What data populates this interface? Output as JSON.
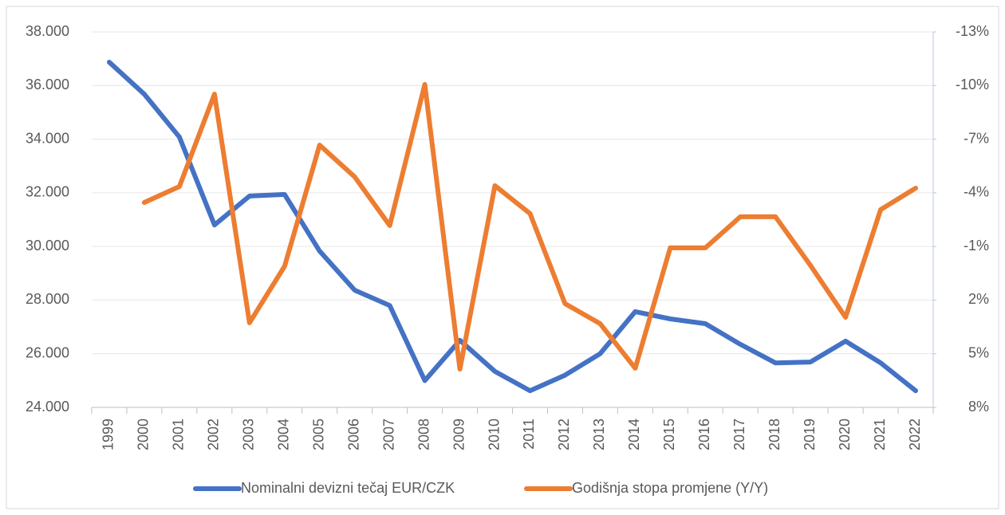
{
  "chart_data": {
    "type": "line",
    "categories": [
      "1999",
      "2000",
      "2001",
      "2002",
      "2003",
      "2004",
      "2005",
      "2006",
      "2007",
      "2008",
      "2009",
      "2010",
      "2011",
      "2012",
      "2013",
      "2014",
      "2015",
      "2016",
      "2017",
      "2018",
      "2019",
      "2020",
      "2021",
      "2022"
    ],
    "series": [
      {
        "name": "Nominalni devizni tečaj EUR/CZK",
        "color": "#4472c4",
        "values": [
          36.87,
          35.68,
          34.08,
          30.8,
          31.88,
          31.94,
          29.83,
          28.37,
          27.8,
          25.0,
          26.5,
          25.34,
          24.62,
          25.2,
          26.0,
          27.57,
          27.3,
          27.12,
          26.35,
          25.66,
          25.69,
          26.47,
          25.66,
          24.62
        ]
      },
      {
        "name": "Godišnja stopa promjene (Y/Y)",
        "color": "#ed7d31",
        "axis": "y2",
        "values": [
          null,
          -3.46,
          -4.35,
          -9.52,
          3.27,
          0.11,
          -6.67,
          -4.89,
          -2.17,
          -10.06,
          5.86,
          -4.4,
          -2.84,
          2.2,
          3.32,
          5.81,
          -0.92,
          -0.92,
          -2.66,
          -2.66,
          0.06,
          2.96,
          -3.06,
          -4.26
        ]
      }
    ],
    "ylim": [
      24,
      38
    ],
    "yticks": [
      {
        "value": 24,
        "label": "24.000"
      },
      {
        "value": 26,
        "label": "26.000"
      },
      {
        "value": 28,
        "label": "28.000"
      },
      {
        "value": 30,
        "label": "30.000"
      },
      {
        "value": 32,
        "label": "32.000"
      },
      {
        "value": 34,
        "label": "34.000"
      },
      {
        "value": 36,
        "label": "36.000"
      },
      {
        "value": 38,
        "label": "38.000"
      }
    ],
    "y2lim": [
      8,
      -13
    ],
    "y2ticks": [
      {
        "value": 8,
        "label": "8%"
      },
      {
        "value": 5,
        "label": "5%"
      },
      {
        "value": 2,
        "label": "2%"
      },
      {
        "value": -1,
        "label": "-1%"
      },
      {
        "value": -4,
        "label": "-4%"
      },
      {
        "value": -7,
        "label": "-7%"
      },
      {
        "value": -10,
        "label": "-10%"
      },
      {
        "value": -13,
        "label": "-13%"
      }
    ],
    "grid": true,
    "legend": "bottom"
  }
}
